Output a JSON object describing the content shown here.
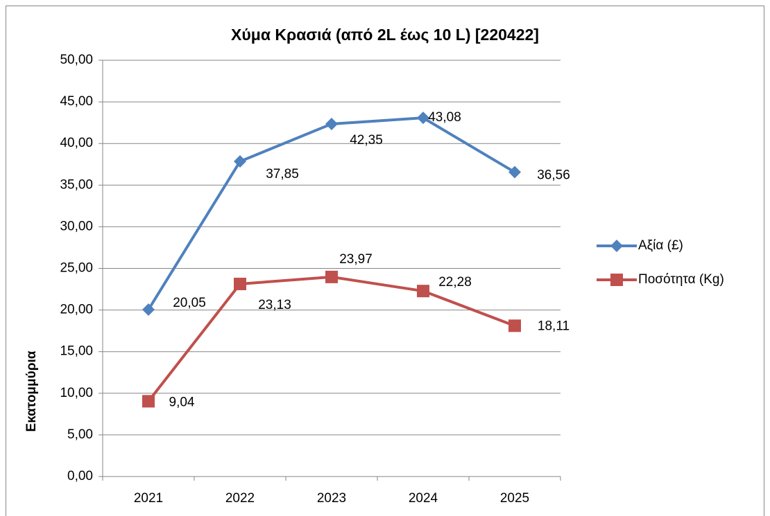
{
  "chart_data": {
    "type": "line",
    "title": "Χύμα Κρασιά (από 2L έως 10 L) [220422]",
    "y_label": "Εκατομμύρια",
    "categories": [
      "2021",
      "2022",
      "2023",
      "2024",
      "2025"
    ],
    "series": [
      {
        "name": "Αξία (£)",
        "color": "#4f81bd",
        "marker": "diamond",
        "values": [
          20.05,
          37.85,
          42.35,
          43.08,
          36.56
        ],
        "value_labels": [
          "20,05",
          "37,85",
          "42,35",
          "43,08",
          "36,56"
        ]
      },
      {
        "name": "Ποσότητα (Kg)",
        "color": "#c0504d",
        "marker": "square",
        "values": [
          9.04,
          23.13,
          23.97,
          22.28,
          18.11
        ],
        "value_labels": [
          "9,04",
          "23,13",
          "23,97",
          "22,28",
          "18,11"
        ]
      }
    ],
    "ylim": [
      0,
      50
    ],
    "yticks": [
      {
        "value": 0,
        "label": "0,00"
      },
      {
        "value": 5,
        "label": "5,00"
      },
      {
        "value": 10,
        "label": "10,00"
      },
      {
        "value": 15,
        "label": "15,00"
      },
      {
        "value": 20,
        "label": "20,00"
      },
      {
        "value": 25,
        "label": "25,00"
      },
      {
        "value": 30,
        "label": "30,00"
      },
      {
        "value": 35,
        "label": "35,00"
      },
      {
        "value": 40,
        "label": "40,00"
      },
      {
        "value": 45,
        "label": "45,00"
      },
      {
        "value": 50,
        "label": "50,00"
      }
    ],
    "grid": true,
    "legend": "right"
  }
}
